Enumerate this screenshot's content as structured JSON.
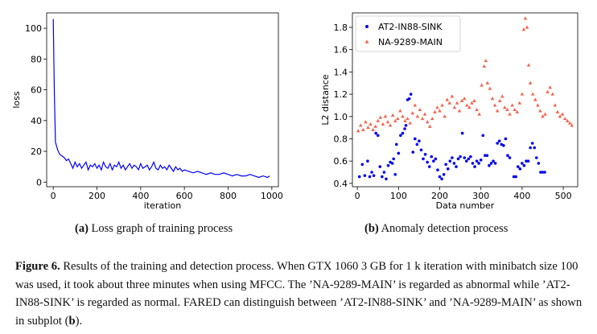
{
  "panels": {
    "a": {
      "caption_label": "(a)",
      "caption_text": "Loss graph of training process"
    },
    "b": {
      "caption_label": "(b)",
      "caption_text": "Anomaly detection process"
    }
  },
  "figure_caption": {
    "label": "Figure 6.",
    "text_before_b": " Results of the training and detection process. When GTX 1060 3 GB for 1 k iteration with minibatch size 100 was used, it took about three minutes when using MFCC. The ’NA-9289-MAIN’ is regarded as abnormal while ’AT2-IN88-SINK’ is regarded as normal. FARED can distinguish between ’AT2-IN88-SINK’ and ’NA-9289-MAIN’ as shown in subplot (",
    "bold_b": "b",
    "text_after_b": ")."
  },
  "chart_data": [
    {
      "type": "line",
      "xlabel": "iteration",
      "ylabel": "loss",
      "xlim": [
        -30,
        1030
      ],
      "ylim": [
        -3,
        110
      ],
      "xticks": [
        "0",
        "200",
        "400",
        "600",
        "800",
        "1000"
      ],
      "yticks": [
        "0",
        "20",
        "40",
        "60",
        "80",
        "100"
      ],
      "color": "#0000ff",
      "series": [
        {
          "x": [
            0,
            5,
            10,
            20,
            30,
            40,
            50,
            60,
            70,
            80,
            90,
            100,
            110,
            120,
            130,
            140,
            150,
            160,
            170,
            180,
            190,
            200,
            210,
            220,
            230,
            240,
            250,
            260,
            270,
            280,
            290,
            300,
            310,
            320,
            330,
            340,
            350,
            360,
            370,
            380,
            390,
            400,
            410,
            420,
            430,
            440,
            450,
            460,
            470,
            480,
            490,
            500,
            510,
            520,
            530,
            540,
            550,
            560,
            570,
            580,
            590,
            600,
            620,
            640,
            660,
            680,
            700,
            720,
            740,
            760,
            780,
            800,
            820,
            840,
            860,
            880,
            900,
            920,
            940,
            960,
            980,
            990
          ],
          "values": [
            106,
            60,
            26,
            21,
            18,
            17,
            16,
            14,
            15,
            12,
            9,
            13,
            10,
            12,
            9,
            11,
            13,
            8,
            11,
            10,
            12,
            9,
            11,
            8,
            13,
            10,
            9,
            12,
            8,
            11,
            10,
            13,
            9,
            11,
            8,
            10,
            12,
            9,
            11,
            10,
            8,
            12,
            9,
            10,
            11,
            8,
            10,
            13,
            9,
            8,
            11,
            9,
            10,
            8,
            11,
            9,
            7,
            10,
            8,
            9,
            7,
            8,
            7,
            6,
            7,
            6,
            5,
            6,
            5,
            5,
            6,
            5,
            4,
            5,
            4,
            4,
            5,
            4,
            3,
            4,
            3,
            4
          ]
        }
      ]
    },
    {
      "type": "scatter",
      "xlabel": "Data number",
      "ylabel": "L2 distance",
      "xlim": [
        -12,
        535
      ],
      "ylim": [
        0.37,
        1.93
      ],
      "xticks": [
        "0",
        "100",
        "200",
        "300",
        "400",
        "500"
      ],
      "yticks": [
        "0.4",
        "0.6",
        "0.8",
        "1.0",
        "1.2",
        "1.4",
        "1.6",
        "1.8"
      ],
      "legend": "top-left",
      "series": [
        {
          "name": "AT2-IN88-SINK",
          "marker": "dot",
          "color": "#0000ee",
          "x": [
            5,
            12,
            18,
            25,
            30,
            35,
            40,
            45,
            50,
            55,
            60,
            65,
            70,
            75,
            80,
            85,
            88,
            92,
            95,
            100,
            105,
            110,
            115,
            118,
            122,
            126,
            130,
            135,
            140,
            145,
            150,
            155,
            160,
            165,
            170,
            175,
            180,
            185,
            190,
            195,
            200,
            205,
            210,
            215,
            220,
            225,
            230,
            235,
            240,
            245,
            250,
            255,
            260,
            265,
            270,
            275,
            280,
            285,
            290,
            295,
            300,
            305,
            310,
            315,
            320,
            325,
            330,
            335,
            340,
            345,
            350,
            355,
            360,
            365,
            370,
            380,
            385,
            390,
            395,
            400,
            405,
            410,
            415,
            420,
            425,
            430,
            435,
            440,
            445,
            450,
            455
          ],
          "values": [
            0.46,
            0.57,
            0.47,
            0.6,
            0.46,
            0.5,
            0.47,
            0.85,
            0.83,
            0.55,
            0.46,
            0.5,
            0.44,
            0.56,
            0.59,
            0.58,
            0.62,
            0.48,
            0.75,
            0.67,
            0.83,
            0.85,
            0.89,
            0.92,
            1.15,
            1.16,
            1.2,
            0.68,
            0.8,
            0.75,
            0.78,
            0.7,
            0.62,
            0.66,
            0.59,
            0.55,
            0.64,
            0.6,
            0.62,
            0.52,
            0.46,
            0.44,
            0.48,
            0.57,
            0.53,
            0.6,
            0.63,
            0.58,
            0.55,
            0.62,
            0.64,
            0.85,
            0.63,
            0.6,
            0.62,
            0.64,
            0.58,
            0.55,
            0.6,
            0.58,
            0.61,
            0.83,
            0.65,
            0.65,
            0.56,
            0.58,
            0.6,
            0.58,
            0.76,
            0.78,
            0.75,
            0.74,
            0.8,
            0.65,
            0.63,
            0.46,
            0.46,
            0.55,
            0.53,
            0.58,
            0.56,
            0.6,
            0.6,
            0.72,
            0.76,
            0.72,
            0.63,
            0.58,
            0.5,
            0.5,
            0.5
          ]
        },
        {
          "name": "NA-9289-MAIN",
          "marker": "triangle",
          "color": "#f4664f",
          "x": [
            2,
            8,
            14,
            20,
            26,
            32,
            38,
            44,
            50,
            56,
            62,
            68,
            74,
            80,
            86,
            92,
            98,
            104,
            110,
            116,
            122,
            128,
            134,
            140,
            146,
            152,
            158,
            164,
            170,
            176,
            182,
            188,
            194,
            200,
            206,
            212,
            218,
            224,
            230,
            236,
            242,
            248,
            254,
            260,
            266,
            272,
            278,
            284,
            290,
            296,
            302,
            308,
            312,
            316,
            322,
            328,
            334,
            340,
            346,
            352,
            358,
            364,
            370,
            376,
            382,
            388,
            394,
            400,
            404,
            408,
            412,
            416,
            420,
            426,
            432,
            438,
            444,
            450,
            456,
            462,
            468,
            474,
            480,
            486,
            492,
            498,
            504,
            510,
            516,
            521
          ],
          "values": [
            0.87,
            0.92,
            0.88,
            0.95,
            0.9,
            0.93,
            0.88,
            0.91,
            0.96,
            0.99,
            0.93,
            1.0,
            0.95,
            0.92,
            1.01,
            0.96,
            0.98,
            1.05,
            1.0,
            0.96,
            0.98,
            0.94,
            1.03,
            1.1,
            1.0,
            1.06,
            0.98,
            1.02,
            0.95,
            0.91,
            0.98,
            1.04,
            1.08,
            1.05,
            1.1,
            1.0,
            1.15,
            1.12,
            1.18,
            1.08,
            1.12,
            1.05,
            1.14,
            1.16,
            1.1,
            1.08,
            1.12,
            1.14,
            1.06,
            1.02,
            1.28,
            1.45,
            1.5,
            1.3,
            1.25,
            1.16,
            1.1,
            1.05,
            1.14,
            1.18,
            1.08,
            1.06,
            1.02,
            1.1,
            1.06,
            1.04,
            1.12,
            1.2,
            1.78,
            1.88,
            1.8,
            1.46,
            1.3,
            1.2,
            1.15,
            1.1,
            1.05,
            1.0,
            1.02,
            1.22,
            1.26,
            1.2,
            1.1,
            1.04,
            1.0,
            1.02,
            0.98,
            0.96,
            0.94,
            0.92
          ]
        }
      ]
    }
  ]
}
